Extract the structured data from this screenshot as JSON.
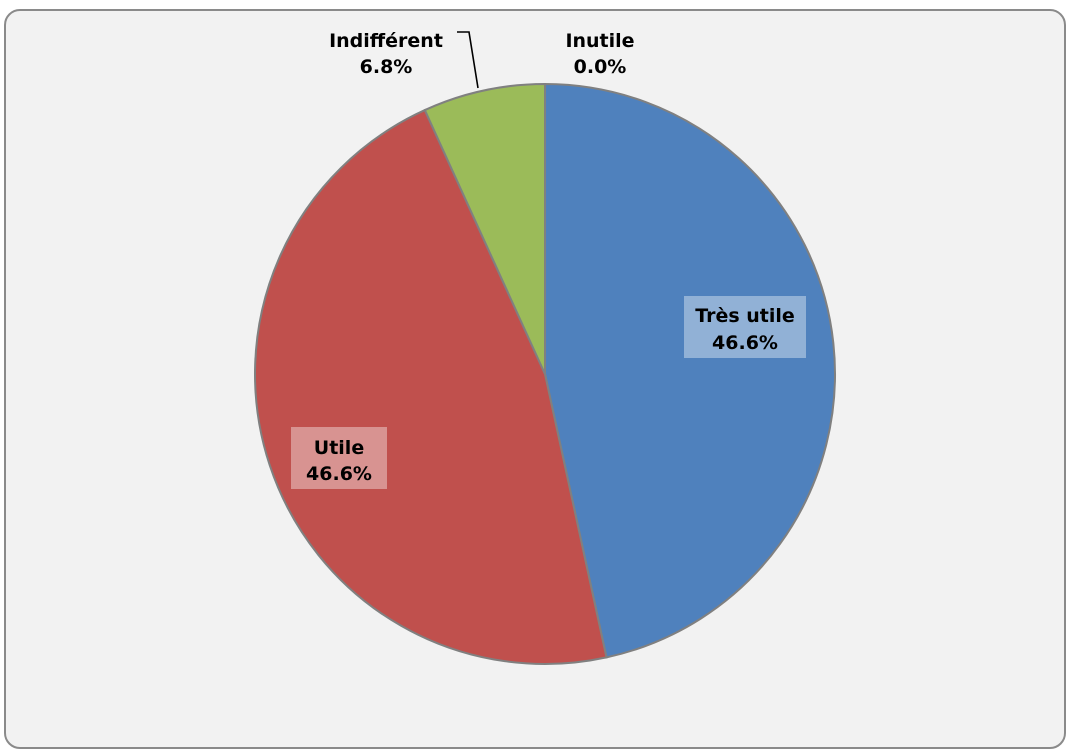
{
  "chart_data": {
    "type": "pie",
    "title": "",
    "slices": [
      {
        "label": "Très utile",
        "value": 46.6,
        "value_label": "46.6%",
        "color": "#4f81bd"
      },
      {
        "label": "Utile",
        "value": 46.6,
        "value_label": "46.6%",
        "color": "#c0504d"
      },
      {
        "label": "Indifférent",
        "value": 6.8,
        "value_label": "6.8%",
        "color": "#9bbb59"
      },
      {
        "label": "Inutile",
        "value": 0.0,
        "value_label": "0.0%",
        "color": "#8064a2"
      }
    ],
    "start_angle": "12 o'clock",
    "direction": "clockwise",
    "data_labels": "category name and percentage",
    "legend": "none",
    "border_color": "#808080",
    "background": "#f2f2f2"
  }
}
